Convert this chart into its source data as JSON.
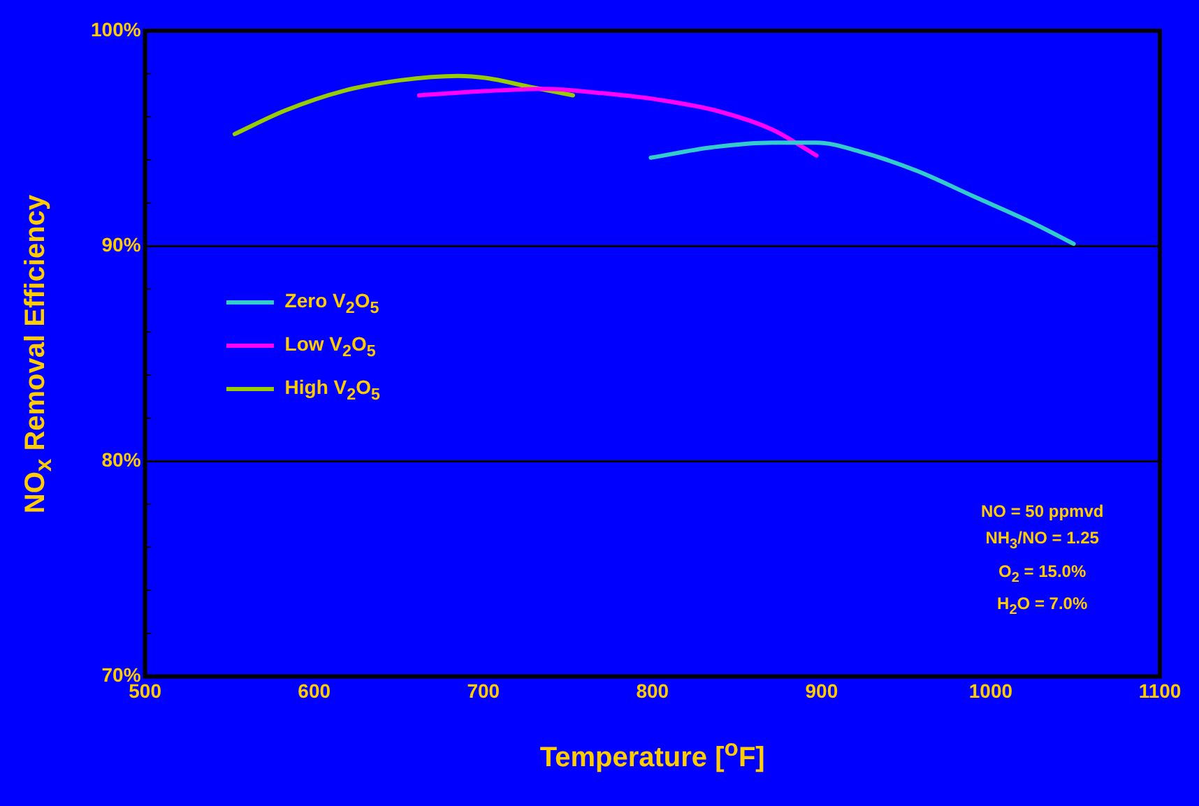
{
  "chart_data": {
    "type": "line",
    "xlabel": "Temperature [$^{o}$F]",
    "ylabel": "NO$_{x}$ Removal Efficiency",
    "xlim": [
      500,
      1100
    ],
    "xticks": [
      500,
      600,
      700,
      800,
      900,
      1000,
      1100
    ],
    "ylim": [
      70,
      100
    ],
    "yticks": [
      {
        "value": 70,
        "label": "70%"
      },
      {
        "value": 80,
        "label": "80%"
      },
      {
        "value": 90,
        "label": "90%"
      },
      {
        "value": 100,
        "label": "100%"
      }
    ],
    "grid": "y",
    "legend": "left",
    "marker": "none",
    "line_style": "solid",
    "series": [
      {
        "name": "Zero V$_{2}$O$_{5}$",
        "color": "#33cccc",
        "x": [
          799,
          837,
          871,
          897,
          922,
          956,
          990,
          1024,
          1049
        ],
        "values": [
          94.1,
          94.6,
          94.8,
          94.8,
          94.4,
          93.5,
          92.3,
          91.1,
          90.1
        ]
      },
      {
        "name": "Low V$_{2}$O$_{5}$",
        "color": "#ff00ff",
        "x": [
          662,
          702,
          736,
          770,
          803,
          837,
          871,
          897
        ],
        "values": [
          97.0,
          97.2,
          97.3,
          97.1,
          96.8,
          96.3,
          95.4,
          94.2
        ]
      },
      {
        "name": "High V$_{2}$O$_{5}$",
        "color": "#99cc00",
        "x": [
          553,
          583,
          617,
          651,
          685,
          702,
          727,
          753
        ],
        "values": [
          95.2,
          96.3,
          97.2,
          97.7,
          97.9,
          97.8,
          97.4,
          97.0
        ]
      }
    ],
    "annotations": [
      "NO = 50 ppmvd",
      "NH$_{3}$/NO = 1.25",
      "O$_{2}$ = 15.0%",
      "H$_{2}$O = 7.0%"
    ]
  }
}
